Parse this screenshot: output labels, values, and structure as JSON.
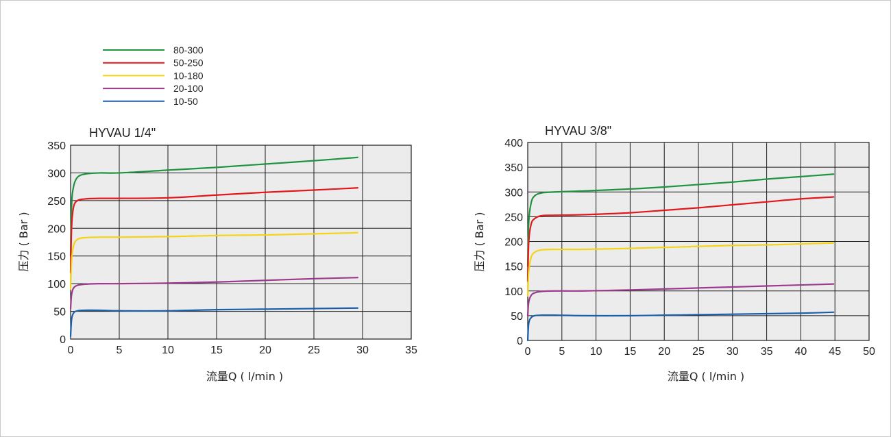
{
  "legend": [
    {
      "label": "80-300",
      "color": "#1e9440"
    },
    {
      "label": "50-250",
      "color": "#e3171c"
    },
    {
      "label": "10-180",
      "color": "#f5d416"
    },
    {
      "label": "20-100",
      "color": "#9c3a8e"
    },
    {
      "label": "10-50",
      "color": "#1a5fae"
    }
  ],
  "chart_data": [
    {
      "type": "line",
      "title": "HYVAU 1/4\"",
      "xlabel": "流量Q ( l/min )",
      "ylabel": "压力 ( Bar )",
      "xlim": [
        0,
        35
      ],
      "ylim": [
        0,
        350
      ],
      "xticks": [
        0,
        5,
        10,
        15,
        20,
        25,
        30,
        35
      ],
      "yticks": [
        0,
        50,
        100,
        150,
        200,
        250,
        300,
        350
      ],
      "grid": true,
      "series": [
        {
          "name": "80-300",
          "color": "#1e9440",
          "points": [
            [
              0,
              150
            ],
            [
              0.1,
              240
            ],
            [
              0.3,
              275
            ],
            [
              0.7,
              292
            ],
            [
              1.5,
              298
            ],
            [
              3,
              300
            ],
            [
              5,
              300
            ],
            [
              10,
              305
            ],
            [
              15,
              310
            ],
            [
              20,
              316
            ],
            [
              25,
              322
            ],
            [
              29.5,
              328
            ]
          ]
        },
        {
          "name": "50-250",
          "color": "#e3171c",
          "points": [
            [
              0,
              120
            ],
            [
              0.1,
              200
            ],
            [
              0.3,
              238
            ],
            [
              0.7,
              250
            ],
            [
              1.5,
              253
            ],
            [
              3,
              254
            ],
            [
              5,
              254
            ],
            [
              10,
              255
            ],
            [
              15,
              260
            ],
            [
              20,
              265
            ],
            [
              25,
              269
            ],
            [
              29.5,
              273
            ]
          ]
        },
        {
          "name": "10-180",
          "color": "#f5d416",
          "points": [
            [
              0,
              90
            ],
            [
              0.1,
              140
            ],
            [
              0.3,
              168
            ],
            [
              0.7,
              180
            ],
            [
              1.5,
              183
            ],
            [
              3,
              184
            ],
            [
              5,
              184
            ],
            [
              10,
              185
            ],
            [
              15,
              187
            ],
            [
              20,
              188
            ],
            [
              25,
              190
            ],
            [
              29.5,
              192
            ]
          ]
        },
        {
          "name": "20-100",
          "color": "#9c3a8e",
          "points": [
            [
              0,
              55
            ],
            [
              0.1,
              80
            ],
            [
              0.3,
              92
            ],
            [
              0.7,
              97
            ],
            [
              1.5,
              99
            ],
            [
              3,
              100
            ],
            [
              5,
              100
            ],
            [
              10,
              101
            ],
            [
              15,
              103
            ],
            [
              20,
              106
            ],
            [
              25,
              109
            ],
            [
              29.5,
              111
            ]
          ]
        },
        {
          "name": "10-50",
          "color": "#1a5fae",
          "points": [
            [
              0,
              5
            ],
            [
              0.1,
              35
            ],
            [
              0.3,
              47
            ],
            [
              0.7,
              51
            ],
            [
              1.5,
              52
            ],
            [
              3,
              52
            ],
            [
              5,
              51
            ],
            [
              10,
              51
            ],
            [
              15,
              53
            ],
            [
              20,
              54
            ],
            [
              25,
              55
            ],
            [
              29.5,
              56
            ]
          ]
        }
      ]
    },
    {
      "type": "line",
      "title": "HYVAU 3/8\"",
      "xlabel": "流量Q ( l/min )",
      "ylabel": "压力 ( Bar )",
      "xlim": [
        0,
        50
      ],
      "ylim": [
        0,
        400
      ],
      "xticks": [
        0,
        5,
        10,
        15,
        20,
        25,
        30,
        35,
        40,
        45,
        50
      ],
      "yticks": [
        0,
        50,
        100,
        150,
        200,
        250,
        300,
        350,
        400
      ],
      "grid": true,
      "series": [
        {
          "name": "80-300",
          "color": "#1e9440",
          "points": [
            [
              0,
              150
            ],
            [
              0.15,
              240
            ],
            [
              0.5,
              278
            ],
            [
              1,
              292
            ],
            [
              2,
              298
            ],
            [
              4,
              300
            ],
            [
              8,
              302
            ],
            [
              15,
              306
            ],
            [
              20,
              310
            ],
            [
              25,
              315
            ],
            [
              30,
              320
            ],
            [
              35,
              326
            ],
            [
              40,
              331
            ],
            [
              44.8,
              336
            ]
          ]
        },
        {
          "name": "50-250",
          "color": "#e3171c",
          "points": [
            [
              0,
              120
            ],
            [
              0.15,
              200
            ],
            [
              0.5,
              235
            ],
            [
              1,
              246
            ],
            [
              2,
              252
            ],
            [
              4,
              253
            ],
            [
              8,
              254
            ],
            [
              15,
              258
            ],
            [
              20,
              263
            ],
            [
              25,
              268
            ],
            [
              30,
              274
            ],
            [
              35,
              280
            ],
            [
              40,
              286
            ],
            [
              44.8,
              290
            ]
          ]
        },
        {
          "name": "10-180",
          "color": "#f5d416",
          "points": [
            [
              0,
              90
            ],
            [
              0.15,
              140
            ],
            [
              0.5,
              168
            ],
            [
              1,
              178
            ],
            [
              2,
              183
            ],
            [
              4,
              184
            ],
            [
              8,
              184
            ],
            [
              15,
              186
            ],
            [
              20,
              188
            ],
            [
              25,
              190
            ],
            [
              30,
              192
            ],
            [
              35,
              193
            ],
            [
              40,
              195
            ],
            [
              44.8,
              197
            ]
          ]
        },
        {
          "name": "20-100",
          "color": "#9c3a8e",
          "points": [
            [
              0,
              50
            ],
            [
              0.15,
              78
            ],
            [
              0.5,
              91
            ],
            [
              1,
              96
            ],
            [
              2,
              99
            ],
            [
              4,
              100
            ],
            [
              8,
              100
            ],
            [
              15,
              102
            ],
            [
              20,
              104
            ],
            [
              25,
              106
            ],
            [
              30,
              108
            ],
            [
              35,
              110
            ],
            [
              40,
              112
            ],
            [
              44.8,
              114
            ]
          ]
        },
        {
          "name": "10-50",
          "color": "#1a5fae",
          "points": [
            [
              0,
              0
            ],
            [
              0.15,
              35
            ],
            [
              0.5,
              46
            ],
            [
              1,
              50
            ],
            [
              2,
              51
            ],
            [
              4,
              51
            ],
            [
              8,
              50
            ],
            [
              15,
              50
            ],
            [
              20,
              51
            ],
            [
              25,
              52
            ],
            [
              30,
              53
            ],
            [
              35,
              54
            ],
            [
              40,
              55
            ],
            [
              44.8,
              57
            ]
          ]
        }
      ]
    }
  ]
}
